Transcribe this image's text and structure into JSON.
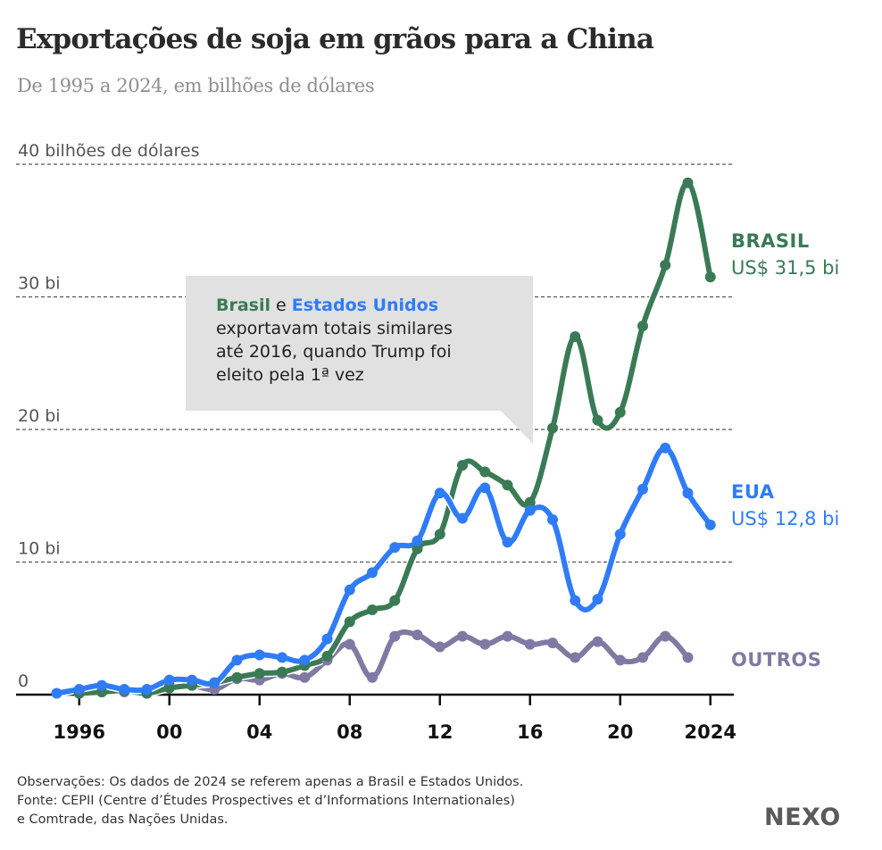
{
  "header": {
    "title": "Exportações de soja em grãos para a China",
    "subtitle": "De 1995 a 2024, em bilhões de dólares"
  },
  "annotation": {
    "brasil": "Brasil",
    "e": " e ",
    "eua": "Estados Unidos",
    "line2": "exportavam totais similares",
    "line3": "até 2016, quando Trump foi",
    "line4": "eleito pela 1ª vez"
  },
  "labels": {
    "brasil_name": "BRASIL",
    "brasil_value": "US$ 31,5 bi",
    "eua_name": "EUA",
    "eua_value": "US$ 12,8 bi",
    "outros_name": "OUTROS"
  },
  "footer": {
    "line1": "Observações: Os dados de 2024 se referem apenas a Brasil e Estados Unidos.",
    "line2": "Fonte: CEPII (Centre d’Études Prospectives et d’Informations Internationales)",
    "line3": "e Comtrade, das Nações Unidas."
  },
  "logo": "NEXO",
  "colors": {
    "brasil": "#3a7a55",
    "eua": "#2f7cf6",
    "outros": "#7f7aa3"
  },
  "chart_data": {
    "type": "line",
    "title": "Exportações de soja em grãos para a China",
    "subtitle": "De 1995 a 2024, em bilhões de dólares",
    "xlabel": "",
    "ylabel": "bilhões de dólares",
    "ylim": [
      0,
      40
    ],
    "xlim": [
      1995,
      2024
    ],
    "grid": true,
    "yticks": [
      {
        "value": 0,
        "label": "0"
      },
      {
        "value": 10,
        "label": "10 bi"
      },
      {
        "value": 20,
        "label": "20 bi"
      },
      {
        "value": 30,
        "label": "30 bi"
      },
      {
        "value": 40,
        "label": "40 bilhões de dólares"
      }
    ],
    "xticks": [
      {
        "value": 1996,
        "label": "1996"
      },
      {
        "value": 2000,
        "label": "00"
      },
      {
        "value": 2004,
        "label": "04"
      },
      {
        "value": 2008,
        "label": "08"
      },
      {
        "value": 2012,
        "label": "12"
      },
      {
        "value": 2016,
        "label": "16"
      },
      {
        "value": 2020,
        "label": "20"
      },
      {
        "value": 2024,
        "label": "2024"
      }
    ],
    "series": [
      {
        "name": "Outros",
        "color": "#7f7aa3",
        "x": [
          1996,
          1997,
          1998,
          1999,
          2000,
          2001,
          2002,
          2003,
          2004,
          2005,
          2006,
          2007,
          2008,
          2009,
          2010,
          2011,
          2012,
          2013,
          2014,
          2015,
          2016,
          2017,
          2018,
          2019,
          2020,
          2021,
          2022,
          2023
        ],
        "values": [
          0.1,
          0.2,
          0.2,
          0.1,
          0.7,
          0.7,
          0.4,
          1.2,
          1.1,
          1.6,
          1.3,
          2.6,
          3.8,
          1.3,
          4.4,
          4.5,
          3.6,
          4.4,
          3.8,
          4.4,
          3.8,
          3.9,
          2.8,
          4.0,
          2.6,
          2.8,
          4.4,
          2.8
        ]
      },
      {
        "name": "Brasil",
        "color": "#3a7a55",
        "x": [
          1996,
          1997,
          1998,
          1999,
          2000,
          2001,
          2002,
          2003,
          2004,
          2005,
          2006,
          2007,
          2008,
          2009,
          2010,
          2011,
          2012,
          2013,
          2014,
          2015,
          2016,
          2017,
          2018,
          2019,
          2020,
          2021,
          2022,
          2023,
          2024
        ],
        "values": [
          0.1,
          0.2,
          0.3,
          0.1,
          0.5,
          0.7,
          0.9,
          1.3,
          1.6,
          1.7,
          2.2,
          2.9,
          5.5,
          6.4,
          7.1,
          11.0,
          12.1,
          17.3,
          16.8,
          15.8,
          14.5,
          20.1,
          27.0,
          20.7,
          21.3,
          27.8,
          32.4,
          38.6,
          31.5
        ]
      },
      {
        "name": "EUA",
        "color": "#2f7cf6",
        "x": [
          1995,
          1996,
          1997,
          1998,
          1999,
          2000,
          2001,
          2002,
          2003,
          2004,
          2005,
          2006,
          2007,
          2008,
          2009,
          2010,
          2011,
          2012,
          2013,
          2014,
          2015,
          2016,
          2017,
          2018,
          2019,
          2020,
          2021,
          2022,
          2023,
          2024
        ],
        "values": [
          0.1,
          0.4,
          0.7,
          0.4,
          0.4,
          1.1,
          1.1,
          0.9,
          2.6,
          3.0,
          2.8,
          2.6,
          4.2,
          7.9,
          9.2,
          11.1,
          11.6,
          15.2,
          13.3,
          15.6,
          11.5,
          13.9,
          13.2,
          7.1,
          7.2,
          12.1,
          15.5,
          18.6,
          15.2,
          12.8
        ]
      }
    ],
    "end_labels": [
      {
        "series": "Brasil",
        "label": "BRASIL",
        "value_label": "US$ 31,5 bi"
      },
      {
        "series": "EUA",
        "label": "EUA",
        "value_label": "US$ 12,8 bi"
      },
      {
        "series": "Outros",
        "label": "OUTROS"
      }
    ]
  }
}
